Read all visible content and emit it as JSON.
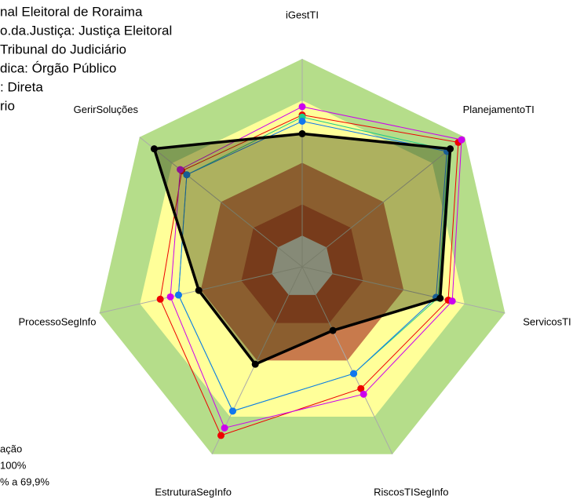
{
  "chart_data": {
    "type": "radar",
    "header_lines": [
      "nal Eleitoral de Roraima",
      "o.da.Justiça: Justiça Eleitoral",
      " Tribunal do Judiciário",
      "dica: Órgão Público",
      ": Direta",
      "rio"
    ],
    "legend_lines": [
      "ação",
      "100%",
      "% a 69,9%"
    ],
    "categories": [
      "iGestTI",
      "PlanejamentoTI",
      "ServicosTI",
      "RiscosTISegInfo",
      "EstruturaSegInfo",
      "ProcessoSegInfo",
      "GerirSoluções"
    ],
    "rlim": [
      0,
      100
    ],
    "series": [
      {
        "color": "#ee0000",
        "values": [
          73,
          96,
          72,
          65,
          90,
          70,
          74
        ]
      },
      {
        "color": "#cc00ee",
        "values": [
          77,
          98,
          74,
          68,
          86,
          65,
          75
        ]
      },
      {
        "color": "#22cc88",
        "values": [
          72,
          90,
          67,
          57,
          77,
          61,
          71
        ]
      },
      {
        "color": "#1177ee",
        "values": [
          70,
          89,
          66,
          57,
          77,
          61,
          71
        ]
      },
      {
        "color": "#000000",
        "values": [
          64,
          91,
          68,
          34,
          52,
          51,
          91
        ]
      }
    ]
  }
}
